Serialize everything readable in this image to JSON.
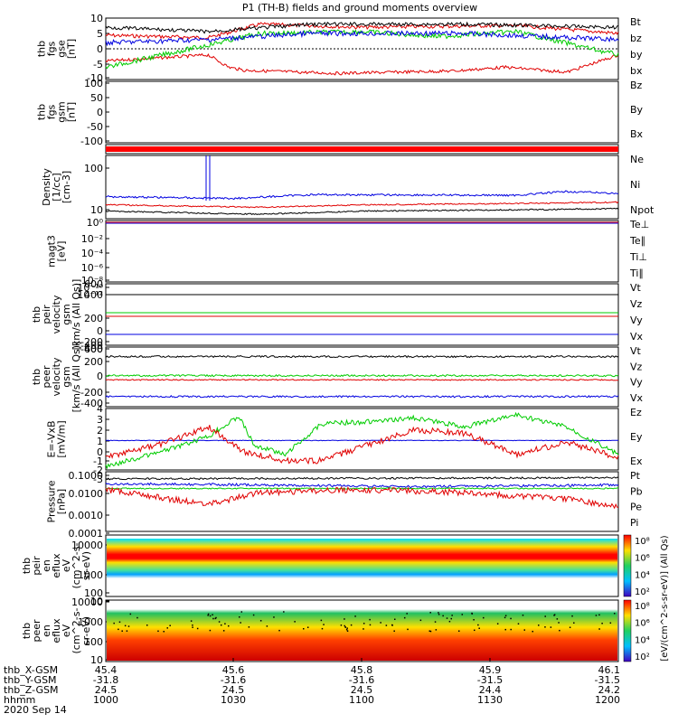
{
  "title": "P1 (TH-B) fields and ground moments overview",
  "colors": {
    "black": "#000000",
    "red": "#e00000",
    "green": "#00cc00",
    "blue": "#0000e0"
  },
  "panels": [
    {
      "id": "fgs",
      "ylabel": [
        "thb",
        "fgs",
        "gse",
        "[nT]"
      ],
      "ticks": [
        "10",
        "5",
        "0",
        "-5",
        "-10"
      ],
      "legend": [
        {
          "text": "Bt",
          "color": "black"
        },
        {
          "text": "bz",
          "color": "red"
        },
        {
          "text": "by",
          "color": "green"
        },
        {
          "text": "bx",
          "color": "blue"
        }
      ]
    },
    {
      "id": "fgs_gsm",
      "ylabel": [
        "thb",
        "fgs",
        "gsm",
        "[nT]"
      ],
      "ticks": [
        "100",
        "50",
        "0",
        "-50",
        "-100"
      ],
      "legend": [
        {
          "text": "Bz",
          "color": "red"
        },
        {
          "text": "By",
          "color": "green"
        },
        {
          "text": "Bx",
          "color": "blue"
        }
      ]
    },
    {
      "id": "flag",
      "ylabel": [],
      "ticks": [],
      "legend": []
    },
    {
      "id": "density",
      "ylabel": [
        "Density",
        "[1/cc]",
        "[cm-3]"
      ],
      "ticks": [
        "100",
        "10"
      ],
      "legend": [
        {
          "text": "Ne",
          "color": "red"
        },
        {
          "text": "Ni",
          "color": "black"
        },
        {
          "text": "Npot",
          "color": "blue"
        }
      ]
    },
    {
      "id": "temp",
      "ylabel": [
        "magt3",
        "[eV]"
      ],
      "ticks": [
        "10⁰",
        "10⁻²",
        "10⁻⁴",
        "10⁻⁶",
        "10⁻⁸",
        "10⁻¹⁰",
        "10⁻¹²"
      ],
      "legend": [
        {
          "text": "Te⊥",
          "color": "red"
        },
        {
          "text": "Te∥",
          "color": "black"
        },
        {
          "text": "Ti⊥",
          "color": "blue"
        },
        {
          "text": "Ti∥",
          "color": "green"
        }
      ]
    },
    {
      "id": "peir_v",
      "ylabel": [
        "thb",
        "peir",
        "velocity",
        "gsm",
        "[km/s (All Qs)]"
      ],
      "ticks": [
        "600",
        "400",
        "200",
        "0",
        "-200",
        "-400",
        "-600"
      ],
      "legend": [
        {
          "text": "Vt",
          "color": "black"
        },
        {
          "text": "Vz",
          "color": "red"
        },
        {
          "text": "Vy",
          "color": "green"
        },
        {
          "text": "Vx",
          "color": "blue"
        }
      ]
    },
    {
      "id": "peer_v",
      "ylabel": [
        "thb",
        "peer",
        "velocity",
        "gsm",
        "[km/s (All Qs)]"
      ],
      "ticks": [
        "400",
        "200",
        "0",
        "-200",
        "-400"
      ],
      "legend": [
        {
          "text": "Vt",
          "color": "black"
        },
        {
          "text": "Vz",
          "color": "red"
        },
        {
          "text": "Vy",
          "color": "green"
        },
        {
          "text": "Vx",
          "color": "blue"
        }
      ]
    },
    {
      "id": "efield",
      "ylabel": [
        "E=-VxB",
        "[mV/m]"
      ],
      "ticks": [
        "4",
        "3",
        "2",
        "1",
        "0",
        "-1",
        "-2",
        "-3"
      ],
      "legend": [
        {
          "text": "Ez",
          "color": "red"
        },
        {
          "text": "Ey",
          "color": "green"
        },
        {
          "text": "Ex",
          "color": "blue"
        }
      ]
    },
    {
      "id": "pressure",
      "ylabel": [
        "Pressure",
        "[nPa]"
      ],
      "ticks": [
        "0.1000",
        "0.0100",
        "0.0010",
        "0.0001"
      ],
      "legend": [
        {
          "text": "Pt",
          "color": "black"
        },
        {
          "text": "Pb",
          "color": "red"
        },
        {
          "text": "Pe",
          "color": "green"
        },
        {
          "text": "Pi",
          "color": "blue"
        }
      ]
    },
    {
      "id": "peir_spec",
      "ylabel": [
        "thb",
        "peir",
        "en",
        "eflux",
        "eV",
        "(cm^2-s-",
        "sr-eV)"
      ],
      "ticks": [
        "10000",
        "1000",
        "100",
        "10"
      ],
      "legend": []
    },
    {
      "id": "peer_spec",
      "ylabel": [
        "thb",
        "peer",
        "en",
        "eflux",
        "eV",
        "(cm^2-s-",
        "sr-eV)"
      ],
      "ticks": [
        "10000",
        "1000",
        "100",
        "10"
      ],
      "legend": []
    }
  ],
  "colorbar": {
    "ticks_upper": [
      "10⁸",
      "10⁶",
      "10⁴",
      "10²"
    ],
    "ticks_lower": [
      "10⁸",
      "10⁶",
      "10⁴",
      "10²"
    ],
    "label": "[eV/(cm^2-s-sr-eV)] (All Qs)"
  },
  "xaxis": {
    "row_labels": [
      "thb_X-GSM",
      "thb_Y-GSM",
      "thb_Z-GSM",
      "hhmm",
      "2020 Sep 14"
    ],
    "columns": [
      [
        "45.4",
        "-31.8",
        "24.5",
        "1000"
      ],
      [
        "45.6",
        "-31.6",
        "24.5",
        "1030"
      ],
      [
        "45.8",
        "-31.6",
        "24.5",
        "1100"
      ],
      [
        "45.9",
        "-31.5",
        "24.4",
        "1130"
      ],
      [
        "46.1",
        "-31.5",
        "24.2",
        "1200"
      ]
    ]
  },
  "chart_data": {
    "type": "line",
    "title": "P1 (TH-B) fields and ground moments overview",
    "x_hhmm": [
      "1000",
      "1030",
      "1100",
      "1130",
      "1200"
    ],
    "series": [
      {
        "panel": "fgs",
        "name": "Bt",
        "values": [
          8,
          9,
          8,
          8,
          9
        ]
      },
      {
        "panel": "fgs",
        "name": "bz",
        "values": [
          6,
          -6,
          -3,
          -4,
          -6
        ]
      },
      {
        "panel": "fgs",
        "name": "by",
        "values": [
          -6,
          4,
          5,
          3,
          -3
        ]
      },
      {
        "panel": "fgs",
        "name": "bx",
        "values": [
          2,
          3,
          5,
          5,
          4
        ]
      },
      {
        "panel": "peir_v",
        "name": "Vt",
        "values": [
          400,
          400,
          400,
          400,
          400
        ]
      },
      {
        "panel": "peir_v",
        "name": "Vy",
        "values": [
          0,
          0,
          0,
          0,
          0
        ]
      },
      {
        "panel": "peir_v",
        "name": "Vz",
        "values": [
          -30,
          -30,
          -30,
          -30,
          -30
        ]
      },
      {
        "panel": "peir_v",
        "name": "Vx",
        "values": [
          -380,
          -380,
          -380,
          -380,
          -380
        ]
      },
      {
        "panel": "efield",
        "name": "Ez",
        "values": [
          -1.5,
          2,
          -1,
          1,
          -1
        ]
      },
      {
        "panel": "efield",
        "name": "Ey",
        "values": [
          -2.5,
          2.5,
          2,
          2.5,
          -1.5
        ]
      },
      {
        "panel": "efield",
        "name": "Ex",
        "values": [
          0,
          0,
          0,
          0,
          0
        ]
      }
    ]
  }
}
